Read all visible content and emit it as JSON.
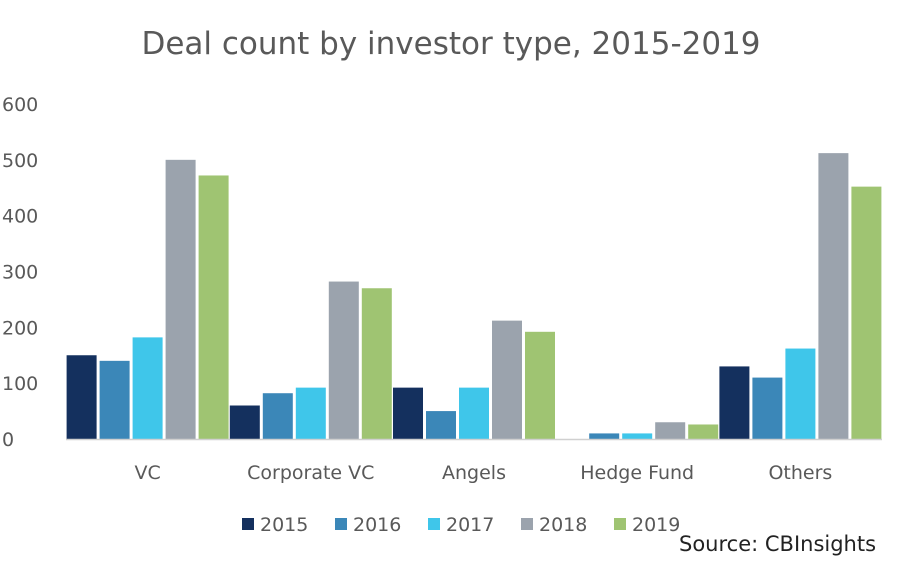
{
  "chart_data": {
    "type": "bar",
    "title": "Deal count by investor type, 2015-2019",
    "xlabel": "",
    "ylabel": "",
    "ylim": [
      0,
      600
    ],
    "yticks": [
      0,
      100,
      200,
      300,
      400,
      500,
      600
    ],
    "grid": false,
    "legend_position": "bottom",
    "categories": [
      "VC",
      "Corporate VC",
      "Angels",
      "Hedge Fund",
      "Others"
    ],
    "series": [
      {
        "name": "2015",
        "color": "#14305e",
        "values": [
          150,
          60,
          92,
          0,
          130
        ]
      },
      {
        "name": "2016",
        "color": "#3b87b8",
        "values": [
          140,
          82,
          50,
          10,
          110
        ]
      },
      {
        "name": "2017",
        "color": "#3fc6ea",
        "values": [
          182,
          92,
          92,
          10,
          162
        ]
      },
      {
        "name": "2018",
        "color": "#9ba3ad",
        "values": [
          500,
          282,
          212,
          30,
          512
        ]
      },
      {
        "name": "2019",
        "color": "#9fc472",
        "values": [
          472,
          270,
          192,
          26,
          452
        ]
      }
    ],
    "source": "Source: CBInsights"
  }
}
